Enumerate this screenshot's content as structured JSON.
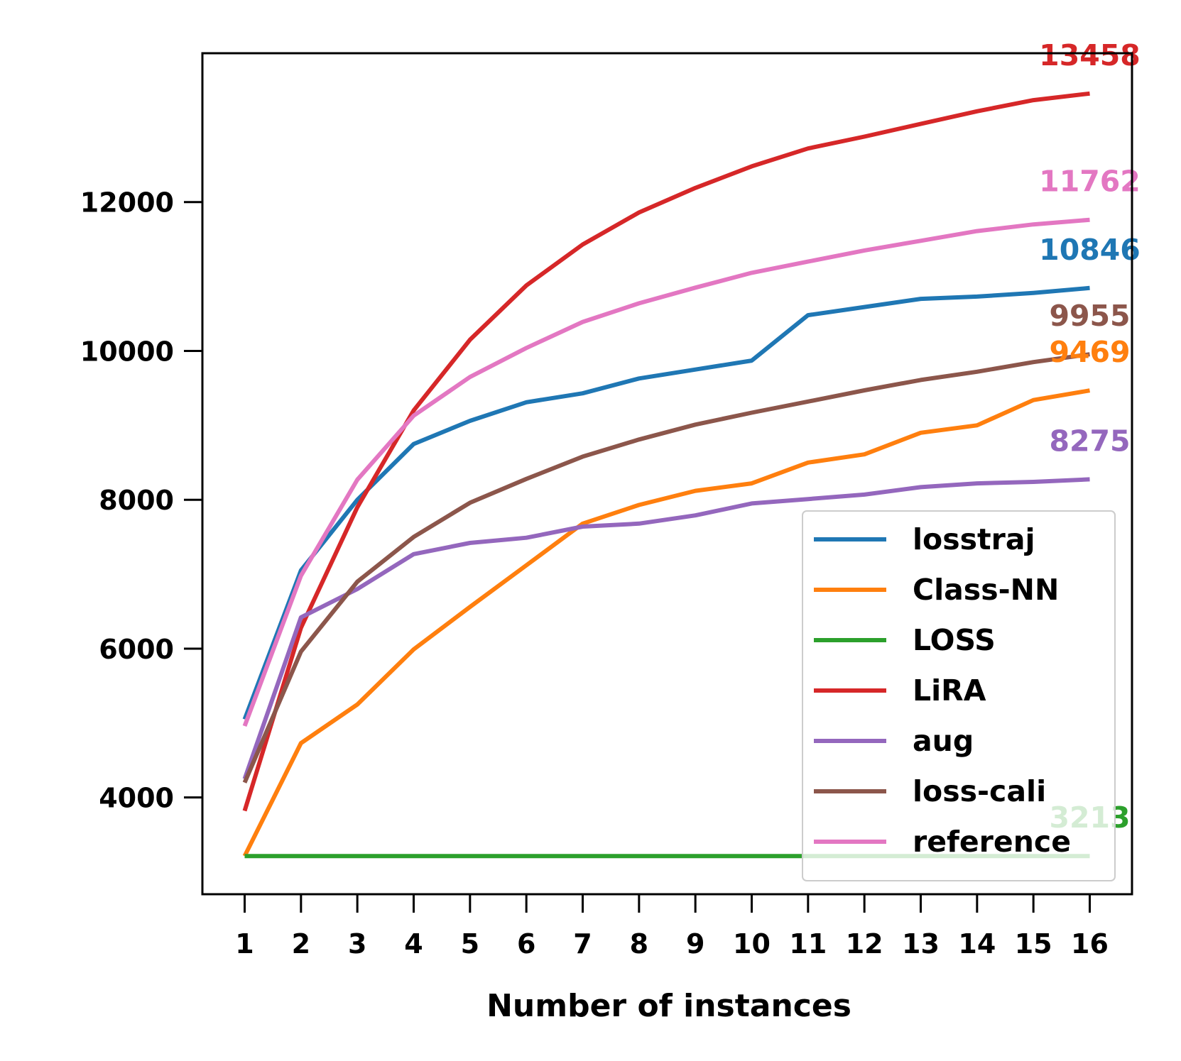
{
  "chart_data": {
    "type": "line",
    "title": "",
    "xlabel": "Number of instances",
    "ylabel": "",
    "x": [
      1,
      2,
      3,
      4,
      5,
      6,
      7,
      8,
      9,
      10,
      11,
      12,
      13,
      14,
      15,
      16
    ],
    "x_tick_labels": [
      "1",
      "2",
      "3",
      "4",
      "5",
      "6",
      "7",
      "8",
      "9",
      "10",
      "11",
      "12",
      "13",
      "14",
      "15",
      "16"
    ],
    "y_ticks": [
      4000,
      6000,
      8000,
      10000,
      12000
    ],
    "y_tick_labels": [
      "4000",
      "6000",
      "8000",
      "10000",
      "12000"
    ],
    "xlim": [
      0.25,
      16.75
    ],
    "ylim": [
      2700,
      14000
    ],
    "grid": false,
    "legend_position": "lower-right",
    "series": [
      {
        "name": "losstraj",
        "color": "#1f77b4",
        "end_label": "10846",
        "values": [
          5050,
          7050,
          8000,
          8750,
          9060,
          9310,
          9430,
          9630,
          9750,
          9870,
          10480,
          10590,
          10700,
          10730,
          10780,
          10846
        ]
      },
      {
        "name": "Class-NN",
        "color": "#ff7f0e",
        "end_label": "9469",
        "values": [
          3213,
          4730,
          5250,
          5990,
          6560,
          7120,
          7680,
          7930,
          8120,
          8220,
          8500,
          8610,
          8900,
          9000,
          9340,
          9469
        ]
      },
      {
        "name": "LOSS",
        "color": "#2ca02c",
        "end_label": "3213",
        "values": [
          3213,
          3213,
          3213,
          3213,
          3213,
          3213,
          3213,
          3213,
          3213,
          3213,
          3213,
          3213,
          3213,
          3213,
          3213,
          3213
        ]
      },
      {
        "name": "LiRA",
        "color": "#d62728",
        "end_label": "13458",
        "values": [
          3820,
          6280,
          7900,
          9200,
          10150,
          10880,
          11430,
          11860,
          12190,
          12480,
          12720,
          12880,
          13050,
          13220,
          13370,
          13458
        ]
      },
      {
        "name": "aug",
        "color": "#9467bd",
        "end_label": "8275",
        "values": [
          4250,
          6420,
          6800,
          7270,
          7420,
          7490,
          7640,
          7680,
          7790,
          7950,
          8010,
          8070,
          8170,
          8220,
          8240,
          8275
        ]
      },
      {
        "name": "loss-cali",
        "color": "#8c564b",
        "end_label": "9955",
        "values": [
          4200,
          5960,
          6900,
          7500,
          7960,
          8280,
          8580,
          8810,
          9010,
          9170,
          9320,
          9470,
          9610,
          9720,
          9850,
          9955
        ]
      },
      {
        "name": "reference",
        "color": "#e377c2",
        "end_label": "11762",
        "values": [
          4960,
          6980,
          8270,
          9130,
          9650,
          10040,
          10390,
          10640,
          10850,
          11050,
          11200,
          11350,
          11480,
          11610,
          11700,
          11762
        ]
      }
    ]
  }
}
